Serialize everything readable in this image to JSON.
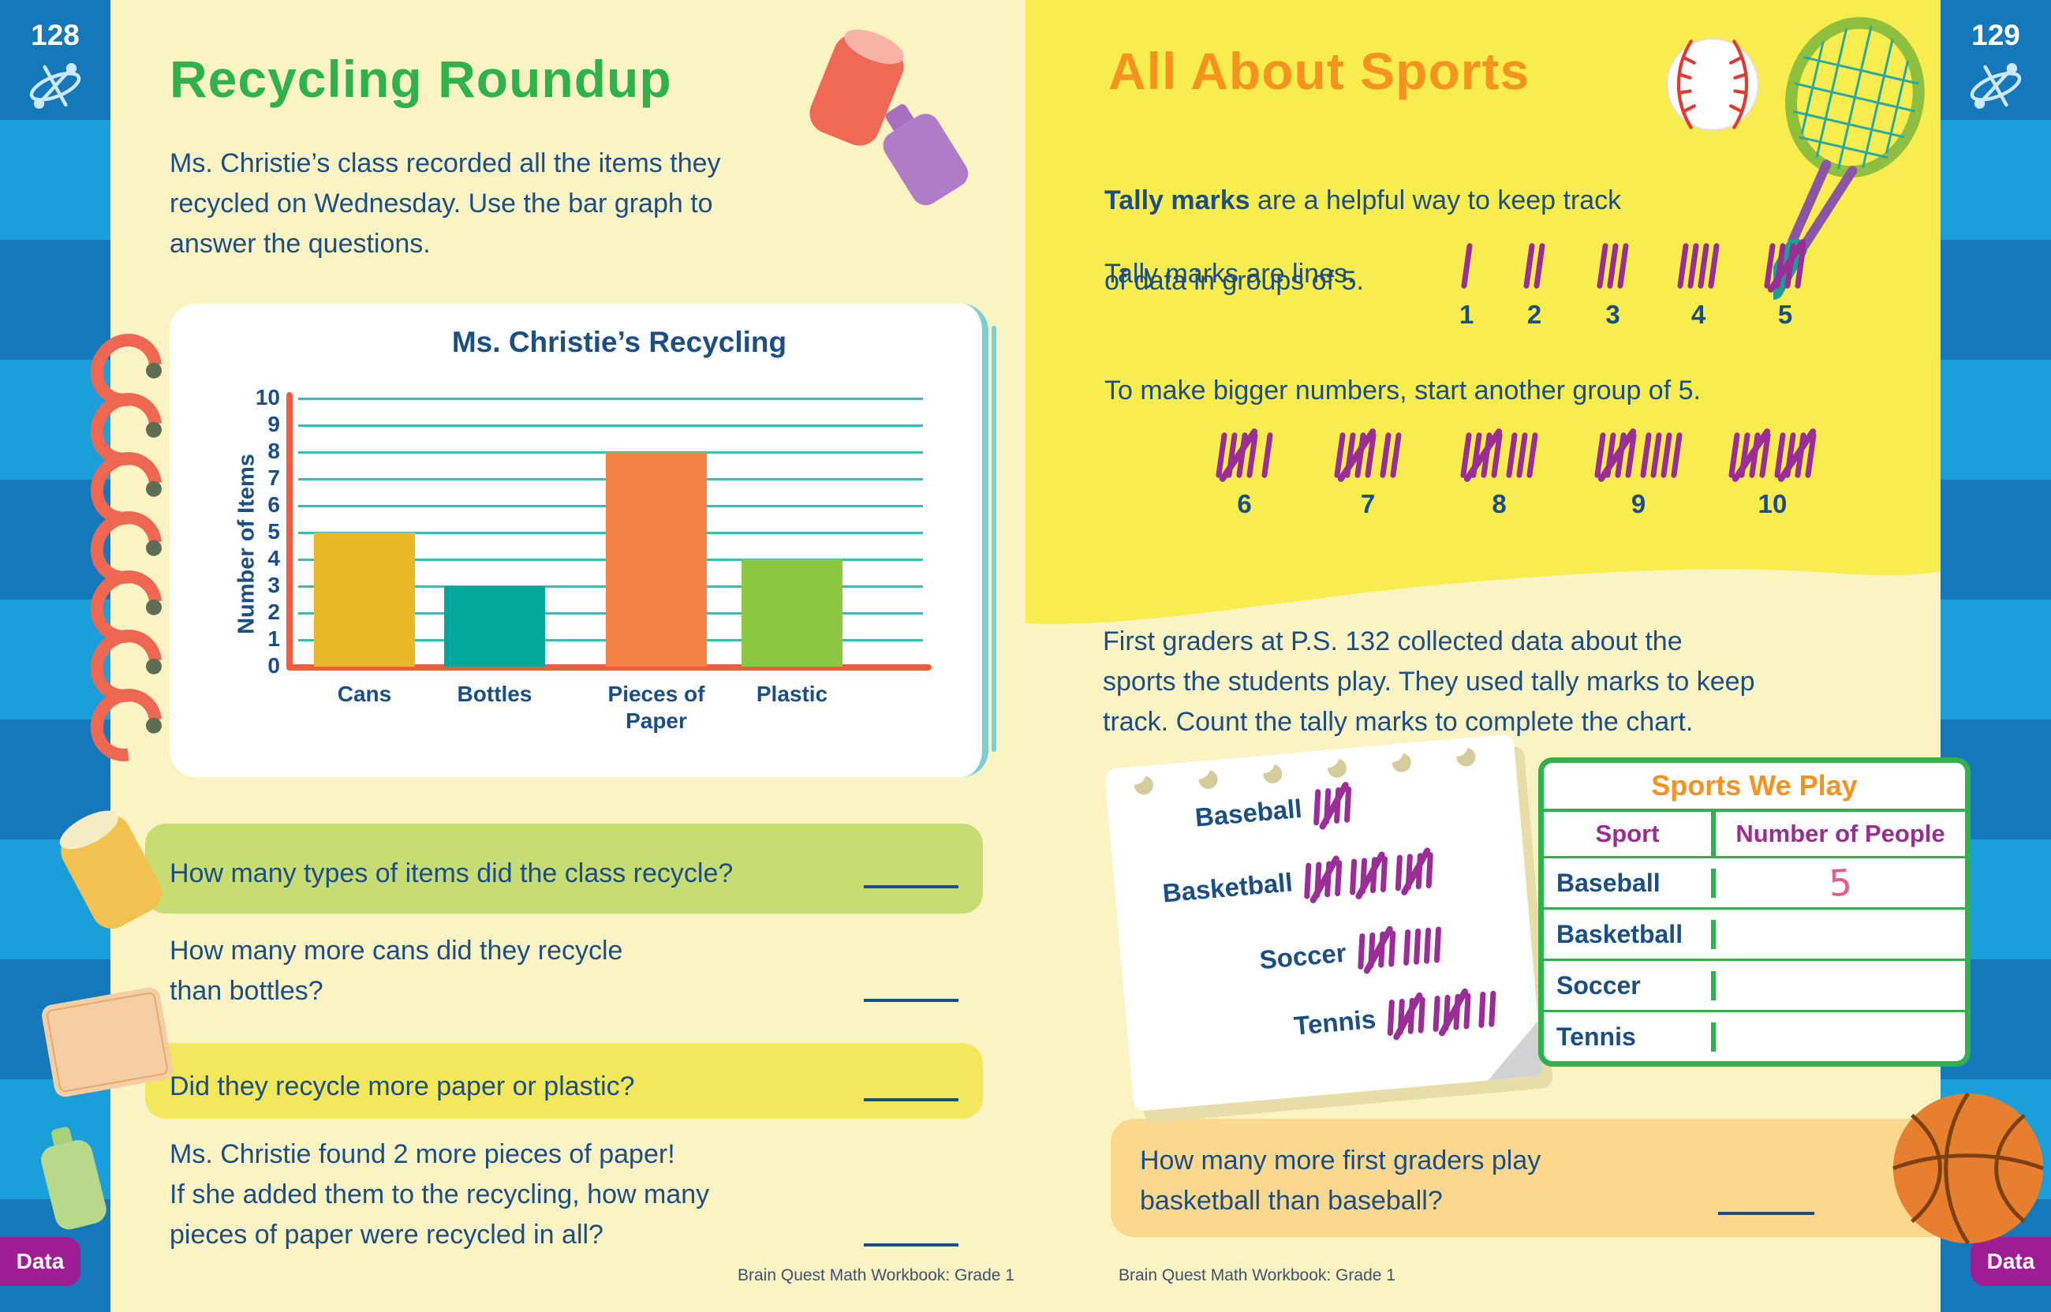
{
  "left_page": {
    "page_number": "128",
    "tab": "Data",
    "title": "Recycling Roundup",
    "intro_lines": [
      "Ms. Christie’s class recorded all the items they",
      "recycled on Wednesday. Use the bar graph to",
      "answer the questions."
    ],
    "questions": [
      {
        "text": [
          "How many types of items did the class recycle?"
        ],
        "highlight": "#c7dc72"
      },
      {
        "text": [
          "How many more cans did they recycle",
          "than bottles?"
        ],
        "highlight": "none"
      },
      {
        "text": [
          "Did they recycle more paper or plastic?"
        ],
        "highlight": "#f3e85c"
      },
      {
        "text": [
          "Ms. Christie found 2 more pieces of paper!",
          "If she added them to the recycling, how many",
          "pieces of paper were recycled in all?"
        ],
        "highlight": "none"
      }
    ],
    "footer": "Brain Quest Math Workbook: Grade 1"
  },
  "chart_data": {
    "type": "bar",
    "title": "Ms. Christie’s Recycling",
    "ylabel": "Number of Items",
    "xlabel": "",
    "categories": [
      "Cans",
      "Bottles",
      "Pieces of Paper",
      "Plastic"
    ],
    "values": [
      5,
      3,
      8,
      4
    ],
    "bar_colors": [
      "#e9b829",
      "#00a89b",
      "#f58345",
      "#8dc63f"
    ],
    "ylim": [
      0,
      10
    ],
    "ytick_step": 1,
    "grid": true,
    "legend": "none",
    "axis_color": "#f15b40",
    "grid_color": "#45b7ae"
  },
  "right_page": {
    "page_number": "129",
    "tab": "Data",
    "title": "All About Sports",
    "intro_bold": "Tally marks",
    "intro_rest_line1": " are a helpful way to keep track",
    "intro_rest_line2": "of data in groups of 5.",
    "lines_label": "Tally marks are lines.",
    "tally_legend_small": [
      1,
      2,
      3,
      4,
      5
    ],
    "bigger_text": "To make bigger numbers, start another group of 5.",
    "tally_legend_big": [
      6,
      7,
      8,
      9,
      10
    ],
    "paragraph": [
      "First graders at P.S. 132 collected data about the",
      "sports the students play. They used tally marks to keep",
      "track. Count the tally marks to complete the chart."
    ],
    "notepad": {
      "rows": [
        {
          "label": "Baseball",
          "tally": 5
        },
        {
          "label": "Basketball",
          "tally": 15
        },
        {
          "label": "Soccer",
          "tally": 9
        },
        {
          "label": "Tennis",
          "tally": 12
        }
      ]
    },
    "table": {
      "title": "Sports We Play",
      "headers": [
        "Sport",
        "Number of People"
      ],
      "rows": [
        {
          "sport": "Baseball",
          "value": "5"
        },
        {
          "sport": "Basketball",
          "value": ""
        },
        {
          "sport": "Soccer",
          "value": ""
        },
        {
          "sport": "Tennis",
          "value": ""
        }
      ]
    },
    "question": [
      "How many more first graders play",
      "basketball than baseball?"
    ],
    "footer": "Brain Quest Math Workbook: Grade 1"
  }
}
